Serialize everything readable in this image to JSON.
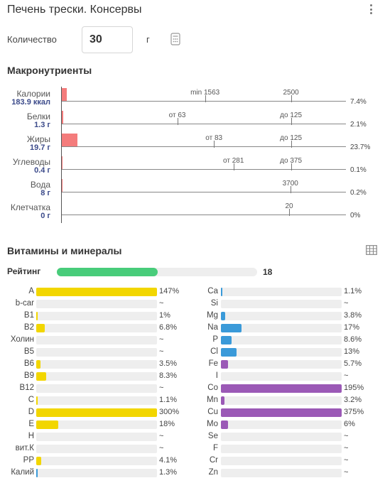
{
  "header": {
    "title": "Печень трески. Консервы"
  },
  "quantity": {
    "label": "Количество",
    "value": "30",
    "unit": "г"
  },
  "macro": {
    "heading": "Макронутриенты",
    "rows": [
      {
        "name": "Калории",
        "value": "183.9 ккал",
        "fill_pct": 7.4,
        "pct": "7.4%",
        "ticks": [
          {
            "label": "min 1563",
            "at": 1563
          },
          {
            "label": "2500",
            "at": 2500
          }
        ],
        "scale_max": 3100
      },
      {
        "name": "Белки",
        "value": "1.3 г",
        "fill_pct": 2.1,
        "pct": "2.1%",
        "ticks": [
          {
            "label": "от 63",
            "at": 63
          },
          {
            "label": "до 125",
            "at": 125
          }
        ],
        "scale_max": 155
      },
      {
        "name": "Жиры",
        "value": "19.7 г",
        "fill_pct": 23.7,
        "pct": "23.7%",
        "ticks": [
          {
            "label": "от 83",
            "at": 83
          },
          {
            "label": "до 125",
            "at": 125
          }
        ],
        "scale_max": 155
      },
      {
        "name": "Углеводы",
        "value": "0.4 г",
        "fill_pct": 0.1,
        "pct": "0.1%",
        "ticks": [
          {
            "label": "от 281",
            "at": 281
          },
          {
            "label": "до 375",
            "at": 375
          }
        ],
        "scale_max": 465
      },
      {
        "name": "Вода",
        "value": "8 г",
        "fill_pct": 0.2,
        "pct": "0.2%",
        "ticks": [
          {
            "label": "3700",
            "at": 3700
          }
        ],
        "scale_max": 4600
      },
      {
        "name": "Клетчатка",
        "value": "0 г",
        "fill_pct": 0,
        "pct": "0%",
        "ticks": [
          {
            "label": "20",
            "at": 20
          }
        ],
        "scale_max": 25
      }
    ]
  },
  "vitamins": {
    "heading": "Витамины и минералы",
    "rating": {
      "label": "Рейтинг",
      "value": "18",
      "fill_pct": 18
    },
    "colors": {
      "vitamin": "#f2d600",
      "mineral_blue": "#3a9ad9",
      "mineral_purple": "#9b59b6"
    },
    "left": [
      {
        "name": "A",
        "pct": "147%",
        "fill": 100,
        "color": "vitamin"
      },
      {
        "name": "b-car",
        "pct": "~",
        "fill": 0,
        "color": "vitamin"
      },
      {
        "name": "B1",
        "pct": "1%",
        "fill": 1,
        "color": "vitamin"
      },
      {
        "name": "B2",
        "pct": "6.8%",
        "fill": 6.8,
        "color": "vitamin"
      },
      {
        "name": "Холин",
        "pct": "~",
        "fill": 0,
        "color": "vitamin"
      },
      {
        "name": "B5",
        "pct": "~",
        "fill": 0,
        "color": "vitamin"
      },
      {
        "name": "B6",
        "pct": "3.5%",
        "fill": 3.5,
        "color": "vitamin"
      },
      {
        "name": "B9",
        "pct": "8.3%",
        "fill": 8.3,
        "color": "vitamin"
      },
      {
        "name": "B12",
        "pct": "~",
        "fill": 0,
        "color": "vitamin"
      },
      {
        "name": "C",
        "pct": "1.1%",
        "fill": 1.1,
        "color": "vitamin"
      },
      {
        "name": "D",
        "pct": "300%",
        "fill": 100,
        "color": "vitamin"
      },
      {
        "name": "E",
        "pct": "18%",
        "fill": 18,
        "color": "vitamin"
      },
      {
        "name": "H",
        "pct": "~",
        "fill": 0,
        "color": "vitamin"
      },
      {
        "name": "вит.К",
        "pct": "~",
        "fill": 0,
        "color": "vitamin"
      },
      {
        "name": "PP",
        "pct": "4.1%",
        "fill": 4.1,
        "color": "vitamin"
      },
      {
        "name": "Калий",
        "pct": "1.3%",
        "fill": 1.3,
        "color": "mineral_blue"
      }
    ],
    "right": [
      {
        "name": "Ca",
        "pct": "1.1%",
        "fill": 1.1,
        "color": "mineral_blue"
      },
      {
        "name": "Si",
        "pct": "~",
        "fill": 0,
        "color": "mineral_blue"
      },
      {
        "name": "Mg",
        "pct": "3.8%",
        "fill": 3.8,
        "color": "mineral_blue"
      },
      {
        "name": "Na",
        "pct": "17%",
        "fill": 17,
        "color": "mineral_blue"
      },
      {
        "name": "P",
        "pct": "8.6%",
        "fill": 8.6,
        "color": "mineral_blue"
      },
      {
        "name": "Cl",
        "pct": "13%",
        "fill": 13,
        "color": "mineral_blue"
      },
      {
        "name": "Fe",
        "pct": "5.7%",
        "fill": 5.7,
        "color": "mineral_purple"
      },
      {
        "name": "I",
        "pct": "~",
        "fill": 0,
        "color": "mineral_purple"
      },
      {
        "name": "Co",
        "pct": "195%",
        "fill": 100,
        "color": "mineral_purple"
      },
      {
        "name": "Mn",
        "pct": "3.2%",
        "fill": 3.2,
        "color": "mineral_purple"
      },
      {
        "name": "Cu",
        "pct": "375%",
        "fill": 100,
        "color": "mineral_purple"
      },
      {
        "name": "Mo",
        "pct": "6%",
        "fill": 6,
        "color": "mineral_purple"
      },
      {
        "name": "Se",
        "pct": "~",
        "fill": 0,
        "color": "mineral_purple"
      },
      {
        "name": "F",
        "pct": "~",
        "fill": 0,
        "color": "mineral_purple"
      },
      {
        "name": "Cr",
        "pct": "~",
        "fill": 0,
        "color": "mineral_purple"
      },
      {
        "name": "Zn",
        "pct": "~",
        "fill": 0,
        "color": "mineral_purple"
      }
    ]
  }
}
